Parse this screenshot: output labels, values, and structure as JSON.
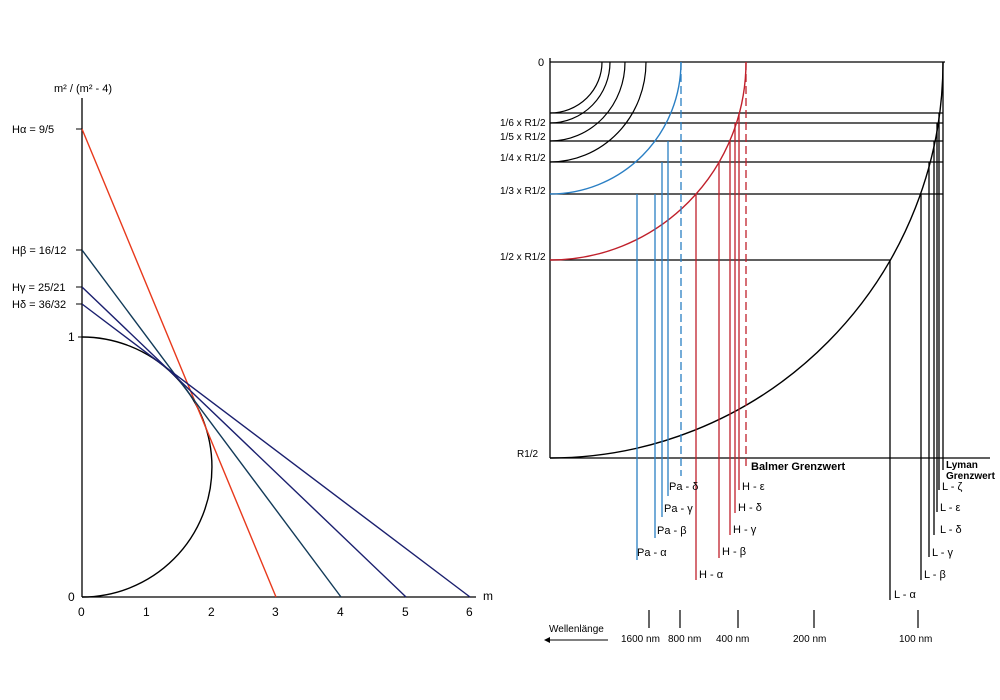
{
  "left_diagram": {
    "y_axis_label": "m² / (m² - 4)",
    "x_axis_label": "m",
    "x_ticks": [
      "0",
      "1",
      "2",
      "3",
      "4",
      "5",
      "6"
    ],
    "y_ticks": [
      "0",
      "1"
    ],
    "lines": [
      {
        "name": "H_alpha",
        "label": "Hα = 9/5",
        "intercept": 1.8,
        "m": 3,
        "color": "#e8391c"
      },
      {
        "name": "H_beta",
        "label": "Hβ = 16/12",
        "intercept": 1.3333,
        "m": 4,
        "color": "#123a58"
      },
      {
        "name": "H_gamma",
        "label": "Hγ = 25/21",
        "intercept": 1.1905,
        "m": 5,
        "color": "#1a1f6e"
      },
      {
        "name": "H_delta",
        "label": "Hδ = 36/32",
        "intercept": 1.125,
        "m": 6,
        "color": "#1a1f6e"
      }
    ]
  },
  "right_diagram": {
    "y_labels": [
      "0",
      "1/6 x R1/2",
      "1/5 x R1/2",
      "1/4 x R1/2",
      "1/3 x R1/2",
      "1/2 x R1/2",
      "R1/2"
    ],
    "balmer_limit_label": "Balmer Grenzwert",
    "lyman_limit_label": "Lyman Grenzwert",
    "paschen_labels": [
      "Pa - α",
      "Pa - β",
      "Pa - γ",
      "Pa - δ"
    ],
    "balmer_labels": [
      "H - α",
      "H - β",
      "H - γ",
      "H - δ",
      "H - ε"
    ],
    "lyman_labels": [
      "L - α",
      "L - β",
      "L - γ",
      "L - δ",
      "L - ε",
      "L - ζ"
    ],
    "wavelength_label": "Wellenlänge",
    "wavelength_ticks": [
      "1600 nm",
      "800 nm",
      "400 nm",
      "200 nm",
      "100 nm"
    ],
    "colors": {
      "paschen": "#2a7fc4",
      "balmer": "#c0202b",
      "lyman": "#000000"
    }
  }
}
